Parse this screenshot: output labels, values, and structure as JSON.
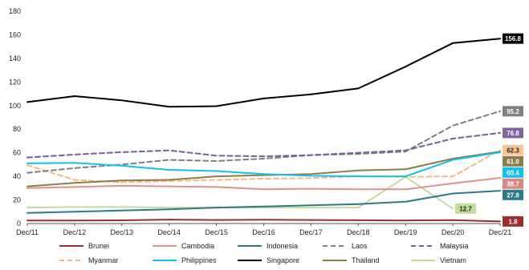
{
  "chart_data": {
    "type": "line",
    "title": "",
    "xlabel": "",
    "ylabel": "",
    "ylim": [
      0,
      180
    ],
    "yticks": [
      0,
      20,
      40,
      60,
      80,
      100,
      120,
      140,
      160,
      180
    ],
    "categories": [
      "Dec/11",
      "Dec/12",
      "Dec/13",
      "Dec/14",
      "Dec/15",
      "Dec/16",
      "Dec/17",
      "Dec/18",
      "Dec/19",
      "Dec/20",
      "Dec/21"
    ],
    "grid": false,
    "legend_position": "bottom",
    "series": [
      {
        "name": "Brunei",
        "color": "#9b2d30",
        "dashed": false,
        "end_label": "1.8",
        "label_color": "#9b2d30",
        "label_text_color": "#ffffff",
        "values": [
          2.5,
          2.5,
          2.7,
          3.3,
          3.0,
          3.2,
          3.0,
          2.8,
          2.6,
          2.9,
          1.8
        ]
      },
      {
        "name": "Cambodia",
        "color": "#e0928a",
        "dashed": false,
        "end_label": "38.7",
        "label_color": "#d98880",
        "label_text_color": "#ffffff",
        "values": [
          30,
          31,
          32,
          31.5,
          31,
          29,
          29.5,
          29,
          29,
          34,
          38.7
        ]
      },
      {
        "name": "Indonesia",
        "color": "#2a7b87",
        "dashed": false,
        "end_label": "27.8",
        "label_color": "#2a7b87",
        "label_text_color": "#ffffff",
        "values": [
          9,
          10,
          11,
          12,
          13.5,
          14.5,
          15.5,
          16.5,
          18.5,
          25.5,
          27.8
        ]
      },
      {
        "name": "Laos",
        "color": "#7f7f7f",
        "dashed": true,
        "end_label": "95.2",
        "label_color": "#7f7f7f",
        "label_text_color": "#ffffff",
        "values": [
          43,
          47,
          50,
          54,
          53,
          55,
          58,
          59,
          61,
          83,
          95.2
        ]
      },
      {
        "name": "Malaysia",
        "color": "#7b5c9e",
        "dashed": true,
        "end_label": "76.8",
        "label_color": "#8064a2",
        "label_text_color": "#ffffff",
        "values": [
          56,
          58.5,
          60.5,
          62,
          57.5,
          57,
          58,
          60,
          62,
          72,
          76.8
        ]
      },
      {
        "name": "Myanmar",
        "color": "#f7b880",
        "dashed": true,
        "end_label": "62.3",
        "label_color": "#f9c597",
        "label_text_color": "#222222",
        "values": [
          49.5,
          37,
          35,
          36,
          37,
          38,
          38.5,
          40,
          39.5,
          40,
          62.3
        ]
      },
      {
        "name": "Philippines",
        "color": "#12c0ee",
        "dashed": false,
        "end_label": "60.4",
        "label_color": "#12c0ee",
        "label_text_color": "#ffffff",
        "values": [
          51,
          51.5,
          49,
          45.5,
          44.5,
          42,
          40.5,
          40,
          40,
          54,
          60.4
        ]
      },
      {
        "name": "Singapore",
        "color": "#000000",
        "dashed": false,
        "end_label": "156.8",
        "label_color": "#000000",
        "label_text_color": "#ffffff",
        "values": [
          103,
          108,
          104.5,
          99,
          99.5,
          106,
          109.5,
          114.5,
          133,
          153,
          156.8
        ]
      },
      {
        "name": "Thailand",
        "color": "#8c7b4b",
        "dashed": false,
        "end_label": "61.0",
        "label_color": "#8c7b4b",
        "label_text_color": "#ffffff",
        "values": [
          31.5,
          34.5,
          36.5,
          37,
          40,
          41,
          42,
          45,
          46,
          55,
          61.0
        ]
      },
      {
        "name": "Vietnam",
        "color": "#c2dd9a",
        "dashed": false,
        "end_label": "12.7",
        "label_color": "#c2dd9a",
        "label_text_color": "#222222",
        "values": [
          13.5,
          14,
          14,
          13.5,
          13.5,
          13.5,
          13.5,
          13.5,
          39.5,
          12.7,
          null
        ]
      }
    ]
  }
}
